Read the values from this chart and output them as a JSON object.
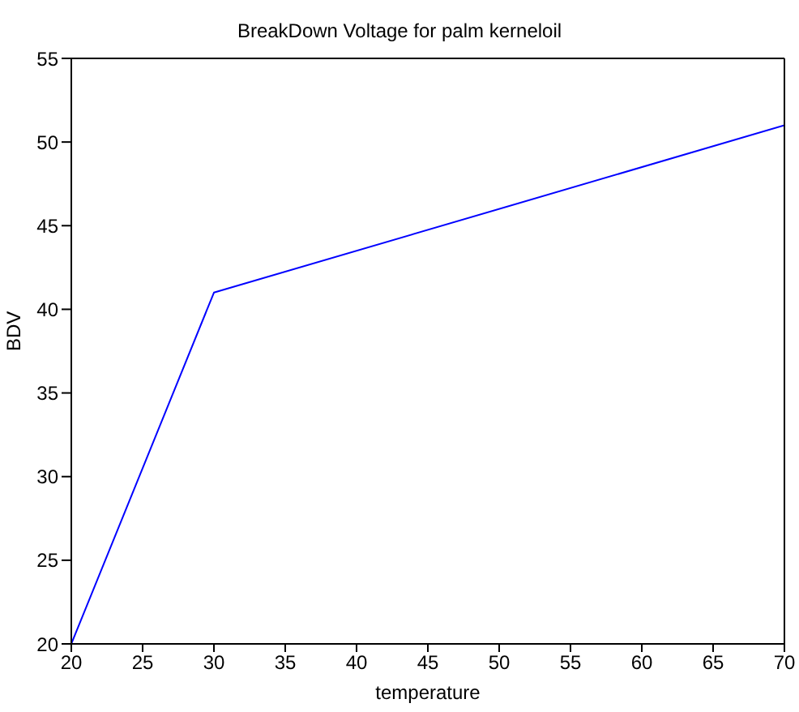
{
  "chart_data": {
    "type": "line",
    "title": "BreakDown Voltage for palm kerneloil",
    "xlabel": "temperature",
    "ylabel": "BDV",
    "x": [
      20,
      30,
      70
    ],
    "series": [
      {
        "color": "#0000ff",
        "values": [
          20,
          41,
          51
        ]
      }
    ],
    "xlim": [
      20,
      70
    ],
    "xticks": [
      20,
      25,
      30,
      35,
      40,
      45,
      50,
      55,
      60,
      65,
      70
    ],
    "ylim": [
      20,
      55
    ],
    "yticks": [
      20,
      25,
      30,
      35,
      40,
      45,
      50,
      55
    ],
    "grid": false,
    "legend": false,
    "marker": "none"
  }
}
